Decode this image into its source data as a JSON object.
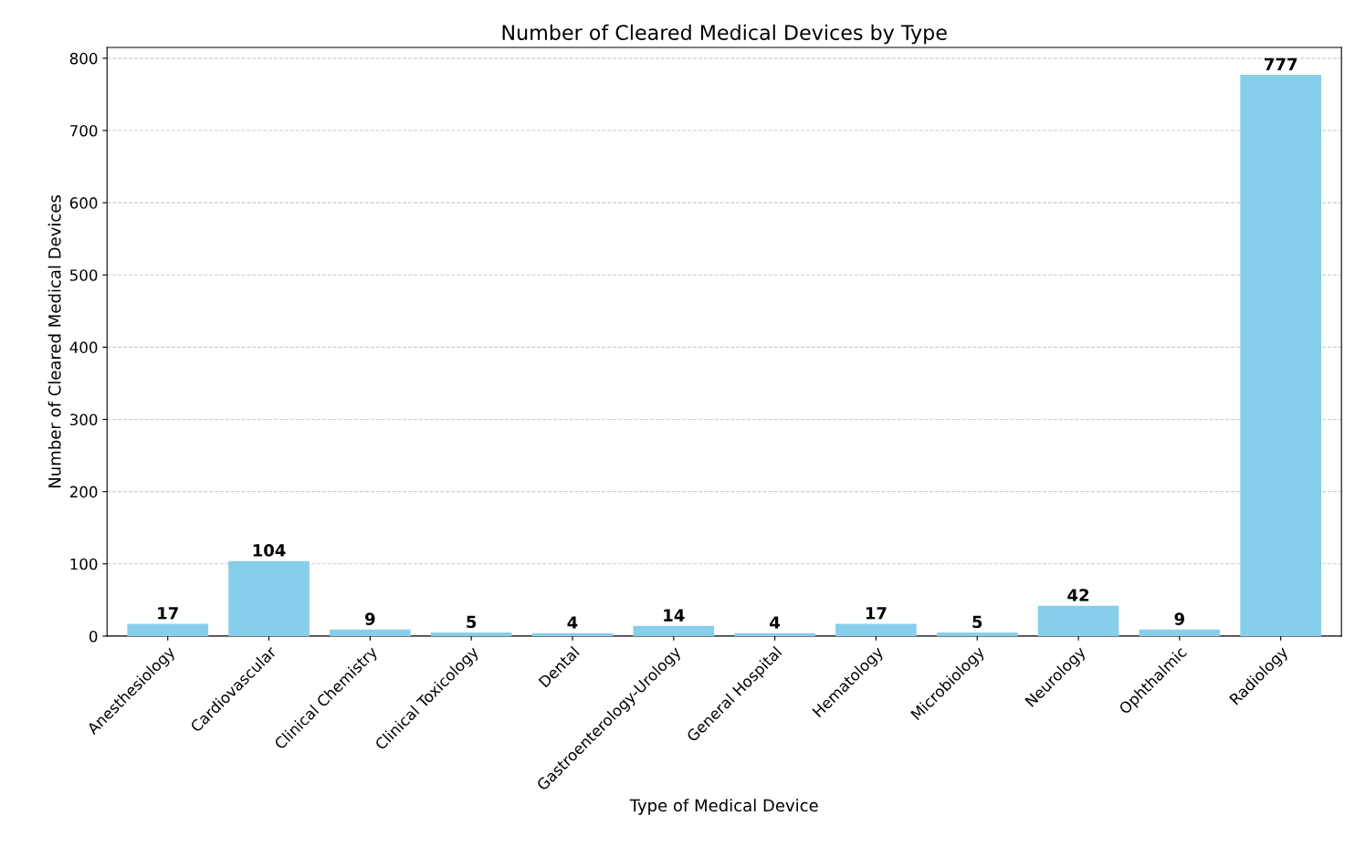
{
  "chart_data": {
    "type": "bar",
    "title": "Number of Cleared Medical Devices by Type",
    "xlabel": "Type of Medical Device",
    "ylabel": "Number of Cleared Medical Devices",
    "categories": [
      "Anesthesiology",
      "Cardiovascular",
      "Clinical Chemistry",
      "Clinical Toxicology",
      "Dental",
      "Gastroenterology-Urology",
      "General Hospital",
      "Hematology",
      "Microbiology",
      "Neurology",
      "Ophthalmic",
      "Radiology"
    ],
    "values": [
      17,
      104,
      9,
      5,
      4,
      14,
      4,
      17,
      5,
      42,
      9,
      777
    ],
    "color": "#87ceeb",
    "ylim": [
      0,
      815
    ],
    "yticks": [
      0,
      100,
      200,
      300,
      400,
      500,
      600,
      700,
      800
    ],
    "grid": "y",
    "data_labels": true
  }
}
